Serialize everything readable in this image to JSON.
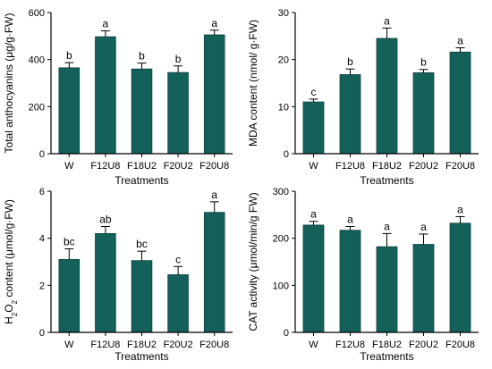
{
  "colors": {
    "bar": "#14615a",
    "axis": "#000000"
  },
  "chart_data": [
    {
      "type": "bar",
      "title": "",
      "xlabel": "Treatments",
      "ylabel": "Total anthocyanins (μg/g·FW)",
      "categories": [
        "W",
        "F12U8",
        "F18U2",
        "F20U2",
        "F20U8"
      ],
      "values": [
        365,
        497,
        360,
        345,
        505
      ],
      "errors": [
        22,
        25,
        25,
        28,
        20
      ],
      "letters": [
        "b",
        "a",
        "b",
        "b",
        "a"
      ],
      "ylim": [
        0,
        600
      ],
      "yticks": [
        0,
        200,
        400,
        600
      ],
      "grid": false
    },
    {
      "type": "bar",
      "title": "",
      "xlabel": "Treatments",
      "ylabel": "MDA content (nmol/ g·FW)",
      "categories": [
        "W",
        "F12U8",
        "F18U2",
        "F20U2",
        "F20U8"
      ],
      "values": [
        11,
        16.8,
        24.5,
        17.2,
        21.6
      ],
      "errors": [
        0.6,
        1.2,
        2.2,
        0.7,
        0.9
      ],
      "letters": [
        "c",
        "b",
        "a",
        "b",
        "a"
      ],
      "ylim": [
        0,
        30
      ],
      "yticks": [
        0,
        10,
        20,
        30
      ],
      "grid": false
    },
    {
      "type": "bar",
      "title": "",
      "xlabel": "Treatments",
      "ylabel_parts": [
        "H",
        "2",
        "O",
        "2",
        " content (μmol/g·FW)"
      ],
      "categories": [
        "W",
        "F12U8",
        "F18U2",
        "F20U2",
        "F20U8"
      ],
      "values": [
        3.1,
        4.2,
        3.05,
        2.45,
        5.1
      ],
      "errors": [
        0.45,
        0.3,
        0.4,
        0.35,
        0.45
      ],
      "letters": [
        "bc",
        "ab",
        "bc",
        "c",
        "a"
      ],
      "ylim": [
        0,
        6
      ],
      "yticks": [
        0,
        2,
        4,
        6
      ],
      "grid": false
    },
    {
      "type": "bar",
      "title": "",
      "xlabel": "Treatments",
      "ylabel": "CAT activity (μmol/min/g FW)",
      "categories": [
        "W",
        "F12U8",
        "F18U2",
        "F20U2",
        "F20U8"
      ],
      "values": [
        228,
        217,
        182,
        187,
        232
      ],
      "errors": [
        8,
        8,
        28,
        22,
        14
      ],
      "letters": [
        "a",
        "a",
        "a",
        "a",
        "a"
      ],
      "ylim": [
        0,
        300
      ],
      "yticks": [
        0,
        100,
        200,
        300
      ],
      "grid": false
    }
  ]
}
